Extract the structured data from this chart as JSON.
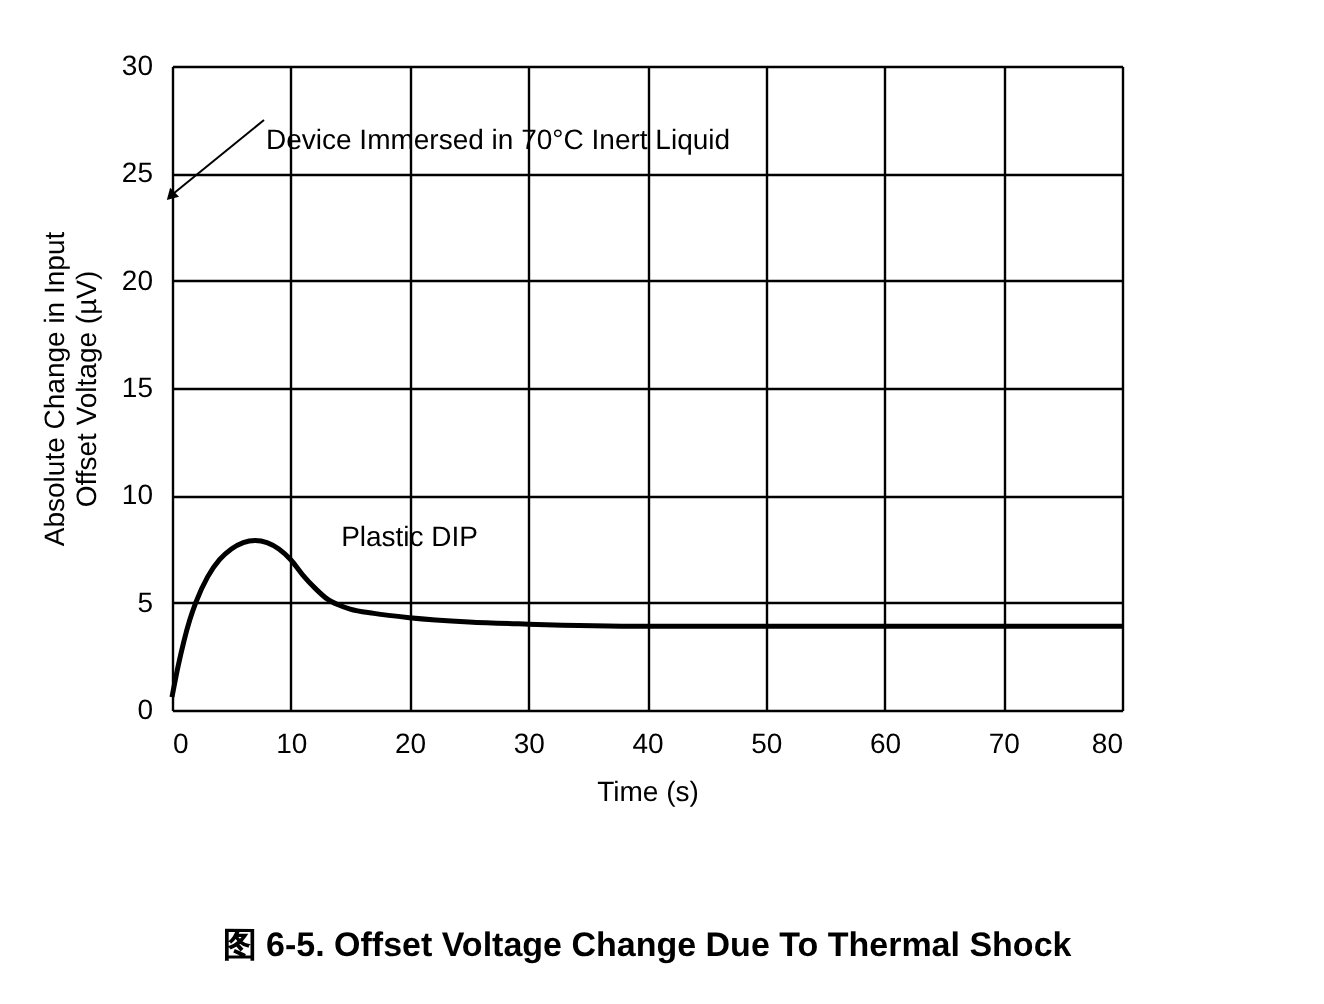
{
  "chart_data": {
    "type": "line",
    "title": "图 6-5. Offset Voltage Change Due To Thermal Shock",
    "xlabel": "Time (s)",
    "ylabel": "Absolute Change in Input\nOffset Voltage (µV)",
    "x": [
      0,
      0.5,
      1,
      1.5,
      2,
      3,
      4,
      5,
      6,
      7,
      8,
      9,
      10,
      11,
      12,
      13,
      14,
      15,
      17,
      20,
      25,
      30,
      40,
      50,
      60,
      70,
      80
    ],
    "series": [
      {
        "name": "Plastic DIP",
        "color": "#000000",
        "values": [
          0.6,
          2.0,
          3.2,
          4.2,
          5.0,
          6.2,
          7.0,
          7.5,
          7.8,
          7.9,
          7.8,
          7.5,
          7.0,
          6.3,
          5.7,
          5.2,
          4.9,
          4.7,
          4.5,
          4.3,
          4.1,
          4.0,
          3.9,
          3.9,
          3.9,
          3.9,
          3.9
        ]
      }
    ],
    "xlim": [
      0,
      80
    ],
    "xticks": [
      0,
      10,
      20,
      30,
      40,
      50,
      60,
      70,
      80
    ],
    "ylim": [
      0,
      30
    ],
    "yticks": [
      0,
      5,
      10,
      15,
      20,
      25,
      30
    ],
    "annotations": [
      {
        "text": "Device Immersed in 70°C Inert Liquid",
        "x": 0,
        "y": 24
      }
    ],
    "grid": true,
    "legend": false,
    "marker": "none",
    "line_style": "solid"
  }
}
